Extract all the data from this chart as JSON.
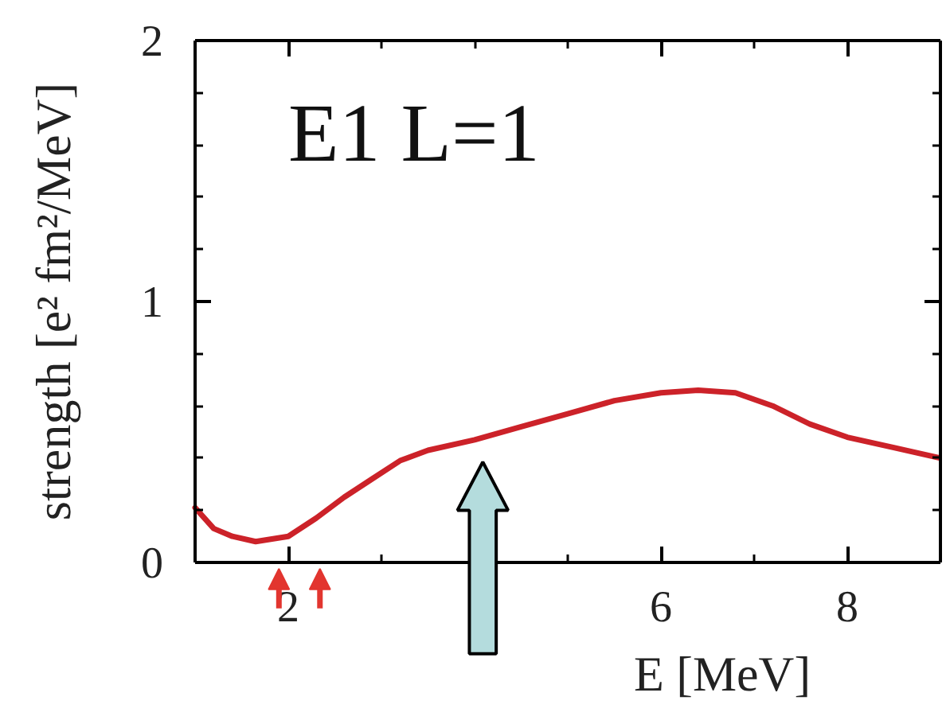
{
  "chart_data": {
    "type": "line",
    "xlabel": "E [MeV]",
    "ylabel": "strength [e² fm²/MeV]",
    "annotations": [
      "E1 L=1"
    ],
    "x": [
      1.0,
      1.2,
      1.4,
      1.65,
      2.0,
      2.3,
      2.6,
      2.9,
      3.2,
      3.5,
      4.0,
      4.5,
      5.0,
      5.5,
      6.0,
      6.4,
      6.8,
      7.2,
      7.6,
      8.0,
      8.5,
      9.0
    ],
    "series": [
      {
        "color": "#cc2229",
        "values": [
          0.21,
          0.13,
          0.1,
          0.08,
          0.1,
          0.17,
          0.25,
          0.32,
          0.39,
          0.43,
          0.47,
          0.52,
          0.57,
          0.62,
          0.65,
          0.66,
          0.65,
          0.6,
          0.53,
          0.48,
          0.44,
          0.4
        ]
      }
    ],
    "xlim": [
      1,
      9
    ],
    "ylim": [
      0,
      2
    ],
    "xticks": [
      2,
      {
        "value": 3,
        "label": null
      },
      {
        "value": 4,
        "label": null
      },
      {
        "value": 5,
        "label": null
      },
      6,
      {
        "value": 7,
        "label": null
      },
      8
    ],
    "yticks": [
      0,
      {
        "value": 0.2,
        "label": null
      },
      {
        "value": 0.4,
        "label": null
      },
      {
        "value": 0.6,
        "label": null
      },
      {
        "value": 0.8,
        "label": null
      },
      1,
      {
        "value": 1.2,
        "label": null
      },
      {
        "value": 1.4,
        "label": null
      },
      {
        "value": 1.6,
        "label": null
      },
      {
        "value": 1.8,
        "label": null
      },
      2
    ],
    "grid": false,
    "line_style": "solid"
  }
}
